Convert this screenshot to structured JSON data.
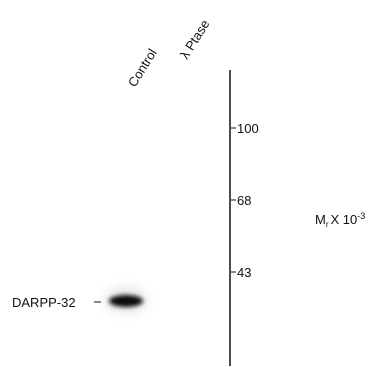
{
  "lanes": [
    "Control",
    "λ Ptase"
  ],
  "markers": [
    100,
    68,
    43
  ],
  "units": {
    "symbol": "M",
    "subscript": "r",
    "text": "X 10",
    "superscript": "-3"
  },
  "band_label": "DARPP-32"
}
